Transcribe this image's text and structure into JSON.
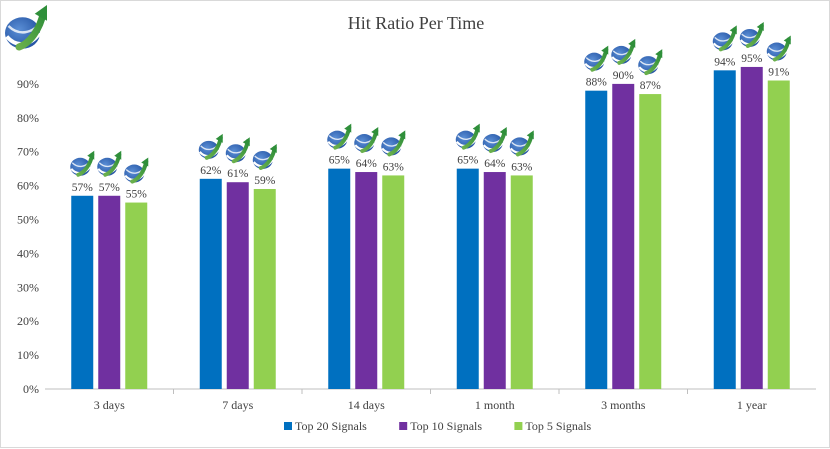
{
  "chart_data": {
    "type": "bar",
    "title": "Hit Ratio Per Time",
    "xlabel": "",
    "ylabel": "",
    "categories": [
      "3 days",
      "7 days",
      "14 days",
      "1 month",
      "3 months",
      "1 year"
    ],
    "series": [
      {
        "name": "Top 20 Signals",
        "color": "#0070c0",
        "values": [
          57,
          62,
          65,
          65,
          88,
          94
        ],
        "labels": [
          "57%",
          "62%",
          "65%",
          "65%",
          "88%",
          "94%"
        ]
      },
      {
        "name": "Top 10 Signals",
        "color": "#7030a0",
        "values": [
          57,
          61,
          64,
          64,
          90,
          95
        ],
        "labels": [
          "57%",
          "61%",
          "64%",
          "64%",
          "90%",
          "95%"
        ]
      },
      {
        "name": "Top 5 Signals",
        "color": "#92d050",
        "values": [
          55,
          59,
          63,
          63,
          87,
          91
        ],
        "labels": [
          "55%",
          "59%",
          "63%",
          "63%",
          "87%",
          "91%"
        ]
      }
    ],
    "ylim": [
      0,
      100
    ],
    "yticks": [
      0,
      10,
      20,
      30,
      40,
      50,
      60,
      70,
      80,
      90
    ],
    "ytick_labels": [
      "0%",
      "10%",
      "20%",
      "30%",
      "40%",
      "50%",
      "60%",
      "70%",
      "80%",
      "90%"
    ],
    "grid": false,
    "legend_position": "bottom",
    "logo_icon": "rising-arrow-globe-icon"
  }
}
